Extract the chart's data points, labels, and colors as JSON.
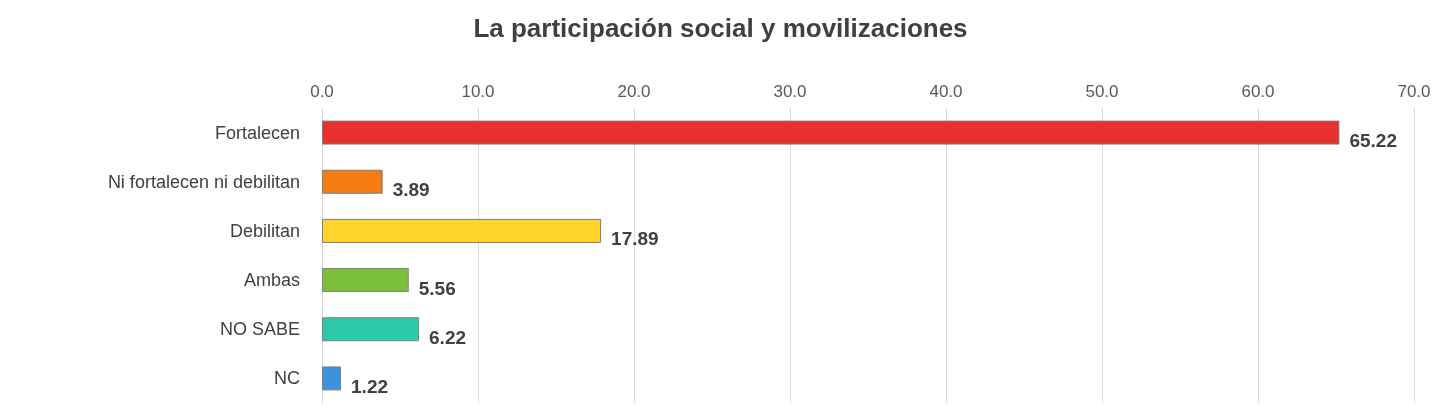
{
  "chart_data": {
    "type": "bar",
    "orientation": "horizontal",
    "title": "La participación social y movilizaciones",
    "categories": [
      "Fortalecen",
      "Ni fortalecen ni debilitan",
      "Debilitan",
      "Ambas",
      "NO SABE",
      "NC"
    ],
    "values": [
      65.22,
      3.89,
      17.89,
      5.56,
      6.22,
      1.22
    ],
    "colors": [
      "#e8302e",
      "#f57c12",
      "#ffd42a",
      "#7cbf3a",
      "#2ec9a8",
      "#3b93de"
    ],
    "xlim": [
      0,
      70
    ],
    "xticks": [
      {
        "value": 0,
        "label": "0.0"
      },
      {
        "value": 10,
        "label": "10.0"
      },
      {
        "value": 20,
        "label": "20.0"
      },
      {
        "value": 30,
        "label": "30.0"
      },
      {
        "value": 40,
        "label": "40.0"
      },
      {
        "value": 50,
        "label": "50.0"
      },
      {
        "value": 60,
        "label": "60.0"
      },
      {
        "value": 70,
        "label": "70.0"
      }
    ],
    "grid": "x",
    "data_labels": true
  }
}
